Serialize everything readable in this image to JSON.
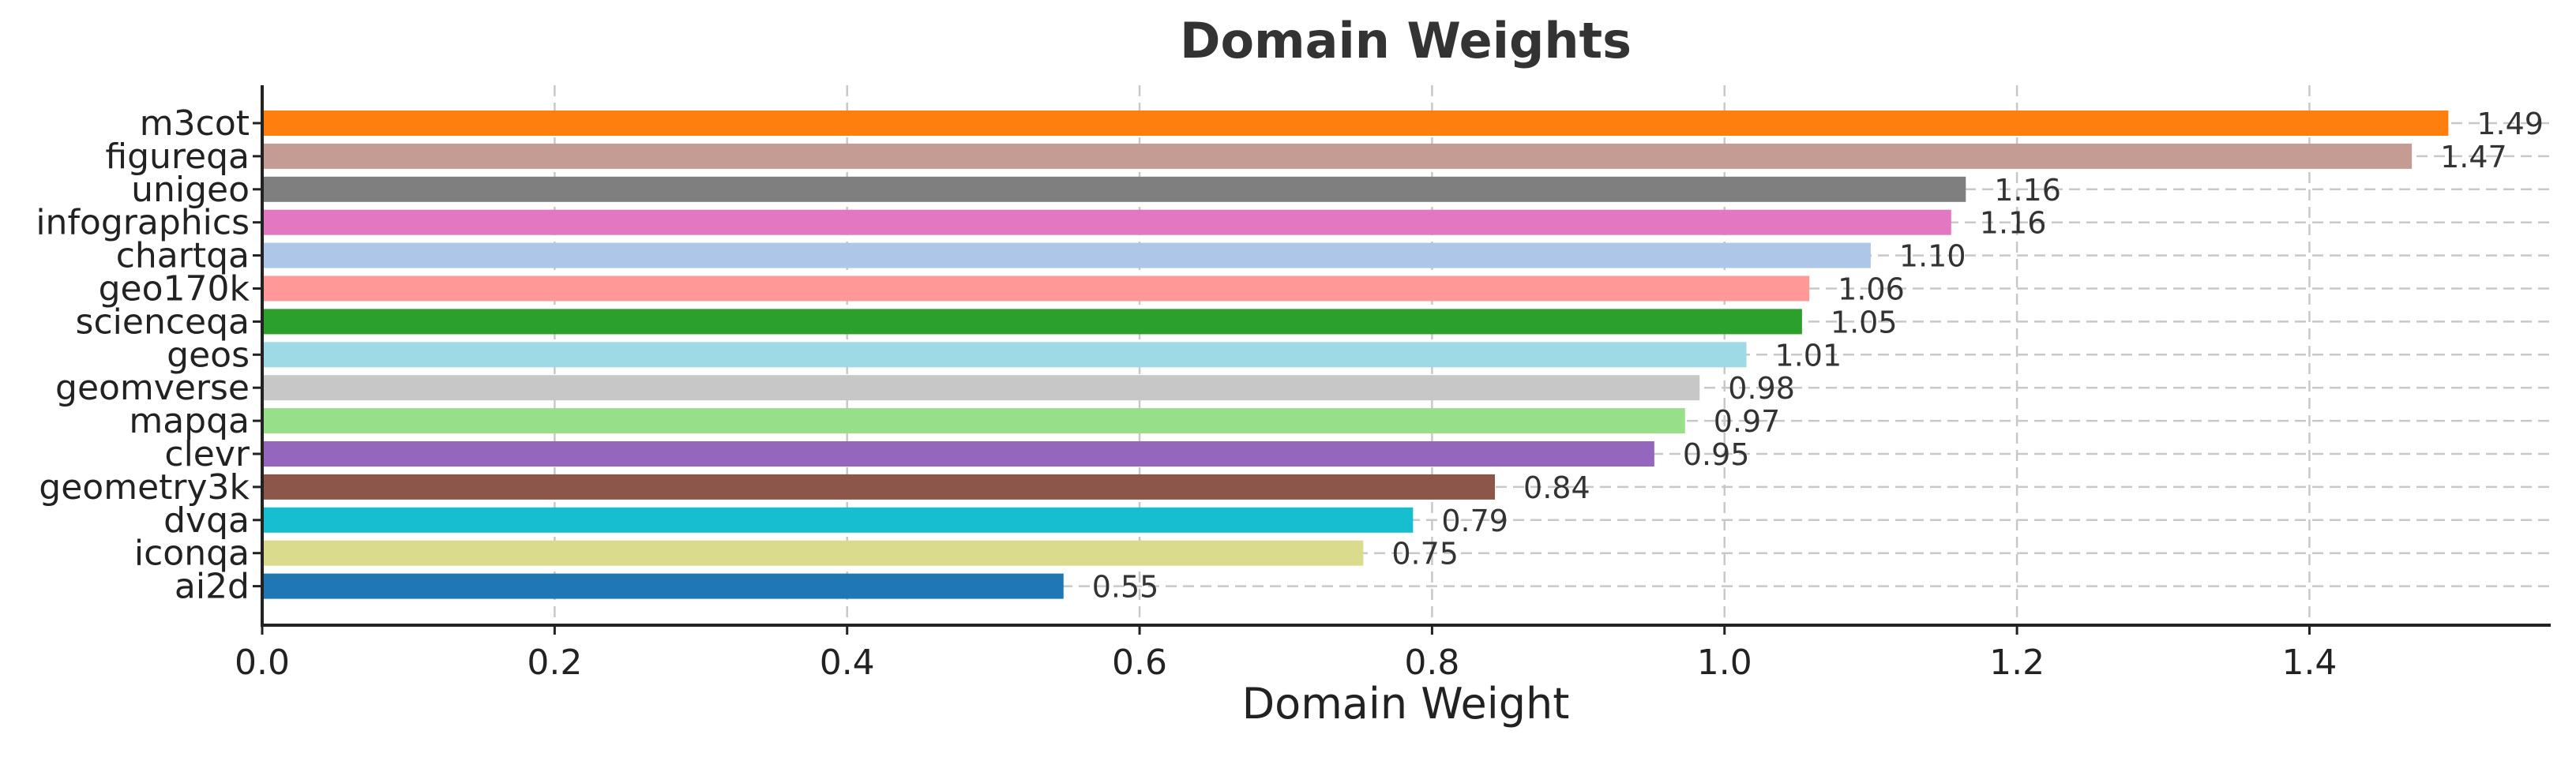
{
  "chart_data": {
    "type": "bar",
    "orientation": "horizontal",
    "title": "Domain Weights",
    "xlabel": "Domain Weight",
    "ylabel": "",
    "xlim": [
      0,
      1.565
    ],
    "xticks": [
      0.0,
      0.2,
      0.4,
      0.6,
      0.8,
      1.0,
      1.2,
      1.4
    ],
    "xtick_labels": [
      "0.0",
      "0.2",
      "0.4",
      "0.6",
      "0.8",
      "1.0",
      "1.2",
      "1.4"
    ],
    "grid": true,
    "categories": [
      "m3cot",
      "figureqa",
      "unigeo",
      "infographics",
      "chartqa",
      "geo170k",
      "scienceqa",
      "geos",
      "geomverse",
      "mapqa",
      "clevr",
      "geometry3k",
      "dvqa",
      "iconqa",
      "ai2d"
    ],
    "values": [
      1.495,
      1.47,
      1.165,
      1.155,
      1.1,
      1.058,
      1.053,
      1.015,
      0.983,
      0.973,
      0.952,
      0.843,
      0.787,
      0.753,
      0.548
    ],
    "value_labels": [
      "1.49",
      "1.47",
      "1.16",
      "1.16",
      "1.10",
      "1.06",
      "1.05",
      "1.01",
      "0.98",
      "0.97",
      "0.95",
      "0.84",
      "0.79",
      "0.75",
      "0.55"
    ],
    "colors": [
      "#ff7f0e",
      "#c49c94",
      "#7f7f7f",
      "#e377c2",
      "#aec7e8",
      "#ff9896",
      "#2ca02c",
      "#9edae5",
      "#c7c7c7",
      "#98df8a",
      "#9467bd",
      "#8c564b",
      "#17becf",
      "#dbdb8d",
      "#1f77b4"
    ]
  }
}
